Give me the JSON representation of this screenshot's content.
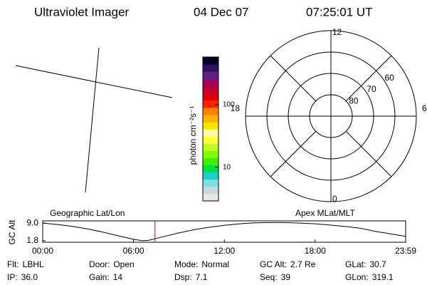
{
  "header": {
    "title": "Ultraviolet Imager",
    "date": "04 Dec 07",
    "time": "07:25:01 UT"
  },
  "geo_panel": {
    "label": "Geographic Lat/Lon"
  },
  "colorbar": {
    "label": "photon cm⁻²s⁻¹",
    "log": true,
    "lim": [
      2.9,
      575
    ],
    "ticks": [
      10,
      100
    ],
    "colors": [
      "#e8e8e8",
      "#c8d8e0",
      "#80e0e0",
      "#20d0d0",
      "#00e040",
      "#40f000",
      "#80ff00",
      "#c0ff20",
      "#ffff40",
      "#ffffa0",
      "#ffe000",
      "#ffb000",
      "#ff8000",
      "#ff2000",
      "#e00000",
      "#c00030",
      "#a00060",
      "#602080",
      "#301060",
      "#000020"
    ]
  },
  "polar": {
    "label": "Apex MLat/MLT",
    "rlim": [
      90,
      50
    ],
    "rticks": [
      80,
      70,
      60
    ],
    "mlt_labels": [
      {
        "value": 12,
        "label": "12"
      },
      {
        "value": 6,
        "label": "6"
      },
      {
        "value": 0,
        "label": "0"
      },
      {
        "value": 18,
        "label": "18"
      }
    ]
  },
  "chart_data": {
    "type": "line",
    "ylabel": "GC Alt",
    "x": [
      0,
      1,
      2,
      3,
      4,
      5,
      6,
      6.6,
      7,
      8,
      9,
      10,
      11,
      12,
      13,
      14,
      15,
      16,
      17,
      18,
      19,
      20,
      21,
      22,
      23,
      23.98
    ],
    "values": [
      9.0,
      8.4,
      7.6,
      6.6,
      5.3,
      3.8,
      2.4,
      1.8,
      2.0,
      3.5,
      5.0,
      6.3,
      7.3,
      8.1,
      8.7,
      9.1,
      9.2,
      9.2,
      9.0,
      8.7,
      8.2,
      7.6,
      6.9,
      5.6,
      4.6,
      3.6
    ],
    "color": "#000000",
    "marker": 7.42,
    "marker_color": "#cc0000",
    "xlim": [
      0,
      23.98
    ],
    "ylim": [
      1.2,
      9.9
    ],
    "xticks": [
      {
        "value": 0,
        "label": "00:00"
      },
      {
        "value": 6,
        "label": "06:00"
      },
      {
        "value": 12,
        "label": "12:00"
      },
      {
        "value": 18,
        "label": "18:00"
      },
      {
        "value": 23.98,
        "label": "23:59"
      }
    ],
    "yticks": [
      {
        "value": 9.0,
        "label": "9.0"
      },
      {
        "value": 1.8,
        "label": "1.8"
      }
    ]
  },
  "info": [
    [
      {
        "label": "Flt:",
        "value": "LBHL"
      },
      {
        "label": "Door:",
        "value": "Open"
      },
      {
        "label": "Mode:",
        "value": "Normal"
      },
      {
        "label": "GC Alt:",
        "value": "2.7 Re"
      },
      {
        "label": "GLat:",
        "value": "30.7"
      }
    ],
    [
      {
        "label": "IP:",
        "value": "36.0"
      },
      {
        "label": "Gain:",
        "value": "14"
      },
      {
        "label": "Dsp:",
        "value": "7.1"
      },
      {
        "label": "Seq:",
        "value": "39"
      },
      {
        "label": "GLon:",
        "value": "319.1"
      }
    ]
  ]
}
